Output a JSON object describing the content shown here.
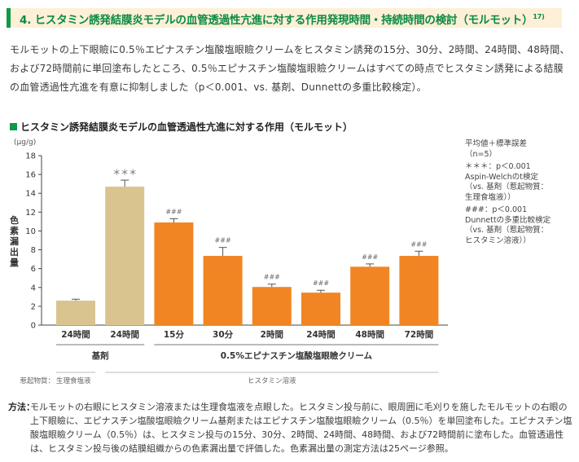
{
  "header": {
    "title": "4. ヒスタミン誘発結膜炎モデルの血管透過性亢進に対する作用発現時間・持続時間の検討（モルモット）",
    "ref": "17)",
    "accent_color": "#0f9a4a"
  },
  "intro": "モルモットの上下眼瞼に0.5％エピナスチン塩酸塩眼瞼クリームをヒスタミン誘発の15分、30分、2時間、24時間、48時間、および72時間前に単回塗布したところ、0.5％エピナスチン塩酸塩眼瞼クリームはすべての時点でヒスタミン誘発による結膜の血管透過性亢進を有意に抑制しました（p＜0.001、vs. 基剤、Dunnettの多重比較検定）。",
  "chart_title": "ヒスタミン誘発結膜炎モデルの血管透過性亢進に対する作用（モルモット）",
  "chart_data": {
    "type": "bar",
    "title": "ヒスタミン誘発結膜炎モデルの血管透過性亢進に対する作用（モルモット）",
    "ylabel": "色素漏出量",
    "yunit": "(μg/g)",
    "ylim": [
      0,
      18
    ],
    "yticks": [
      0,
      2,
      4,
      6,
      8,
      10,
      12,
      14,
      16,
      18
    ],
    "categories": [
      "24時間",
      "24時間",
      "15分",
      "30分",
      "2時間",
      "24時間",
      "48時間",
      "72時間"
    ],
    "values": [
      2.6,
      14.7,
      10.9,
      7.35,
      4.05,
      3.45,
      6.2,
      7.35
    ],
    "errors": [
      0.15,
      0.7,
      0.4,
      0.9,
      0.3,
      0.25,
      0.3,
      0.5
    ],
    "significance": [
      "",
      "＊＊＊",
      "###",
      "###",
      "###",
      "###",
      "###",
      "###"
    ],
    "colors": [
      "#d9c48f",
      "#d9c48f",
      "#f28523",
      "#f28523",
      "#f28523",
      "#f28523",
      "#f28523",
      "#f28523"
    ],
    "groups": [
      {
        "label": "基剤",
        "start": 0,
        "end": 1
      },
      {
        "label": "0.5%エピナスチン塩酸塩眼瞼クリーム",
        "start": 2,
        "end": 7
      }
    ],
    "inducers": [
      {
        "prefix": "惹起物質：",
        "label": "生理食塩液",
        "start": 0,
        "end": 0
      },
      {
        "label": "ヒスタミン溶液",
        "start": 1,
        "end": 7
      }
    ]
  },
  "notes": {
    "stats": [
      "平均値＋標準誤差",
      "（n=5）"
    ],
    "sig1": [
      "＊＊＊：p＜0.001",
      "Aspin-Welchのt検定",
      "（vs. 基剤（惹起物質：",
      "生理食塩液））"
    ],
    "sig2": [
      "###：p＜0.001",
      "Dunnettの多重比較検定",
      "（vs. 基剤（惹起物質：",
      "ヒスタミン溶液））"
    ]
  },
  "method": {
    "label": "方法：",
    "text": "モルモットの右眼にヒスタミン溶液または生理食塩液を点眼した。ヒスタミン投与前に、眼周囲に毛刈りを施したモルモットの右眼の上下眼瞼に、エピナスチン塩酸塩眼瞼クリーム基剤またはエピナスチン塩酸塩眼瞼クリーム（0.5％）を単回塗布した。エピナスチン塩酸塩眼瞼クリーム（0.5％）は、ヒスタミン投与の15分、30分、2時間、24時間、48時間、および72時間前に塗布した。血管透過性は、ヒスタミン投与後の結膜組織からの色素漏出量で評価した。色素漏出量の測定方法は25ページ参照。"
  }
}
